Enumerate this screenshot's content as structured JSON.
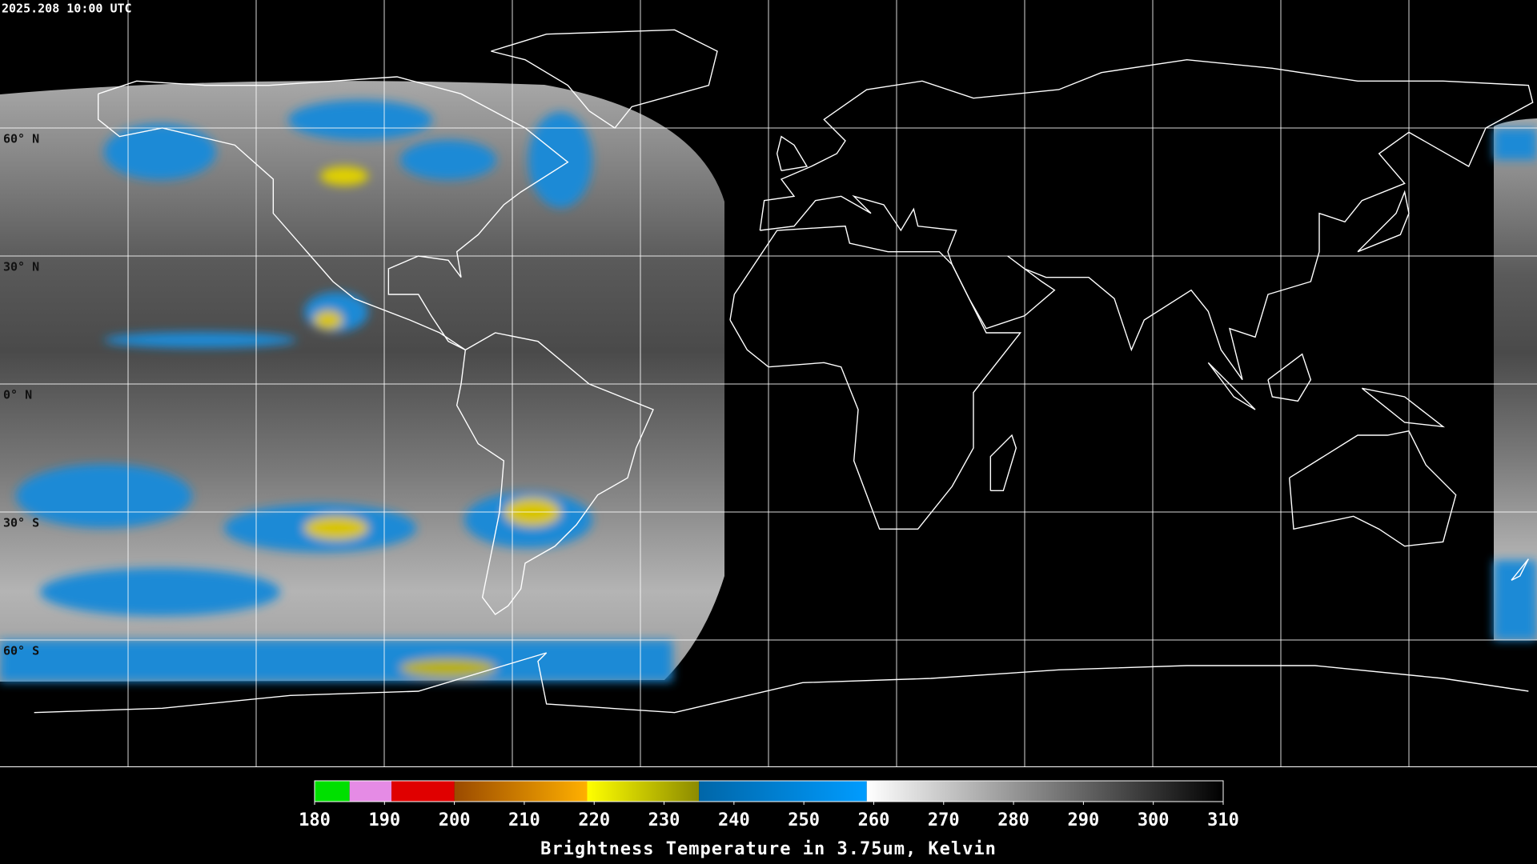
{
  "timestamp": "2025.208 10:00 UTC",
  "map": {
    "lat_labels": [
      "60° N",
      "30° N",
      "0° N",
      "30° S",
      "60° S"
    ]
  },
  "colorbar": {
    "title": "Brightness Temperature in 3.75um, Kelvin",
    "range": [
      180,
      310
    ],
    "ticks": [
      180,
      190,
      200,
      210,
      220,
      230,
      240,
      250,
      260,
      270,
      280,
      290,
      300,
      310
    ],
    "segments": [
      {
        "from": 180,
        "to": 185,
        "color_from": "#00e000",
        "color_to": "#00e000"
      },
      {
        "from": 185,
        "to": 191,
        "color_from": "#e58be5",
        "color_to": "#e58be5"
      },
      {
        "from": 191,
        "to": 200,
        "color_from": "#e00000",
        "color_to": "#e00000"
      },
      {
        "from": 200,
        "to": 219,
        "color_from": "#9a4a00",
        "color_to": "#ffb000"
      },
      {
        "from": 219,
        "to": 235,
        "color_from": "#ffff00",
        "color_to": "#8c8a00"
      },
      {
        "from": 235,
        "to": 259,
        "color_from": "#0066a8",
        "color_to": "#009cff"
      },
      {
        "from": 259,
        "to": 310,
        "color_from": "#ffffff",
        "color_to": "#000000"
      }
    ]
  }
}
